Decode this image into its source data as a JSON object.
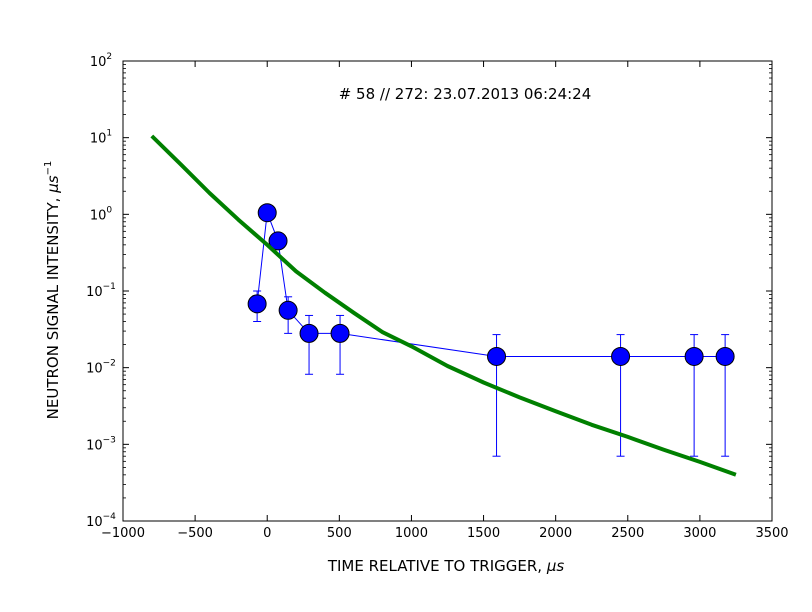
{
  "chart_data": {
    "type": "scatter",
    "title": "",
    "annotation": "# 58 // 272: 23.07.2013 06:24:24",
    "xlabel": "TIME RELATIVE TO TRIGGER, ",
    "xlabel_unit": "μs",
    "ylabel": "NEUTRON SIGNAL INTENSITY, ",
    "ylabel_unit": "μs",
    "ylabel_unit_exp": "−1",
    "xlim": [
      -1000,
      3500
    ],
    "ylim": [
      0.0001,
      100
    ],
    "yscale": "log",
    "x_ticks": [
      {
        "value": -1000,
        "label": "−1000"
      },
      {
        "value": -500,
        "label": "−500"
      },
      {
        "value": 0,
        "label": "0"
      },
      {
        "value": 500,
        "label": "500"
      },
      {
        "value": 1000,
        "label": "1000"
      },
      {
        "value": 1500,
        "label": "1500"
      },
      {
        "value": 2000,
        "label": "2000"
      },
      {
        "value": 2500,
        "label": "2500"
      },
      {
        "value": 3000,
        "label": "3000"
      },
      {
        "value": 3500,
        "label": "3500"
      }
    ],
    "y_ticks": [
      {
        "value": 0.0001,
        "base": "10",
        "exp": "−4"
      },
      {
        "value": 0.001,
        "base": "10",
        "exp": "−3"
      },
      {
        "value": 0.01,
        "base": "10",
        "exp": "−2"
      },
      {
        "value": 0.1,
        "base": "10",
        "exp": "−1"
      },
      {
        "value": 1,
        "base": "10",
        "exp": "0"
      },
      {
        "value": 10,
        "base": "10",
        "exp": "1"
      },
      {
        "value": 100,
        "base": "10",
        "exp": "2"
      }
    ],
    "series": [
      {
        "kind": "points",
        "color": "#0000ff",
        "points": [
          {
            "x": -70,
            "y": 0.068,
            "lo": 0.04,
            "hi": 0.1
          },
          {
            "x": 0,
            "y": 1.05
          },
          {
            "x": 75,
            "y": 0.45
          },
          {
            "x": 145,
            "y": 0.056,
            "lo": 0.028,
            "hi": 0.084
          },
          {
            "x": 290,
            "y": 0.028,
            "lo": 0.0082,
            "hi": 0.048
          },
          {
            "x": 505,
            "y": 0.028,
            "lo": 0.0082,
            "hi": 0.048
          },
          {
            "x": 1590,
            "y": 0.014,
            "lo": 0.0007,
            "hi": 0.027
          },
          {
            "x": 2450,
            "y": 0.014,
            "lo": 0.0007,
            "hi": 0.027
          },
          {
            "x": 2960,
            "y": 0.014,
            "lo": 0.0007,
            "hi": 0.027
          },
          {
            "x": 3175,
            "y": 0.014,
            "lo": 0.0007,
            "hi": 0.027
          }
        ]
      },
      {
        "kind": "curve",
        "color": "#008000",
        "x": [
          -800,
          -600,
          -400,
          -200,
          0,
          200,
          400,
          600,
          800,
          1000,
          1250,
          1500,
          1750,
          2000,
          2250,
          2500,
          2750,
          3000,
          3250
        ],
        "y": [
          10.5,
          4.5,
          1.9,
          0.85,
          0.4,
          0.18,
          0.095,
          0.052,
          0.029,
          0.019,
          0.0105,
          0.0064,
          0.0041,
          0.0027,
          0.0018,
          0.00125,
          0.00085,
          0.00059,
          0.0004
        ]
      }
    ],
    "grid": false
  }
}
